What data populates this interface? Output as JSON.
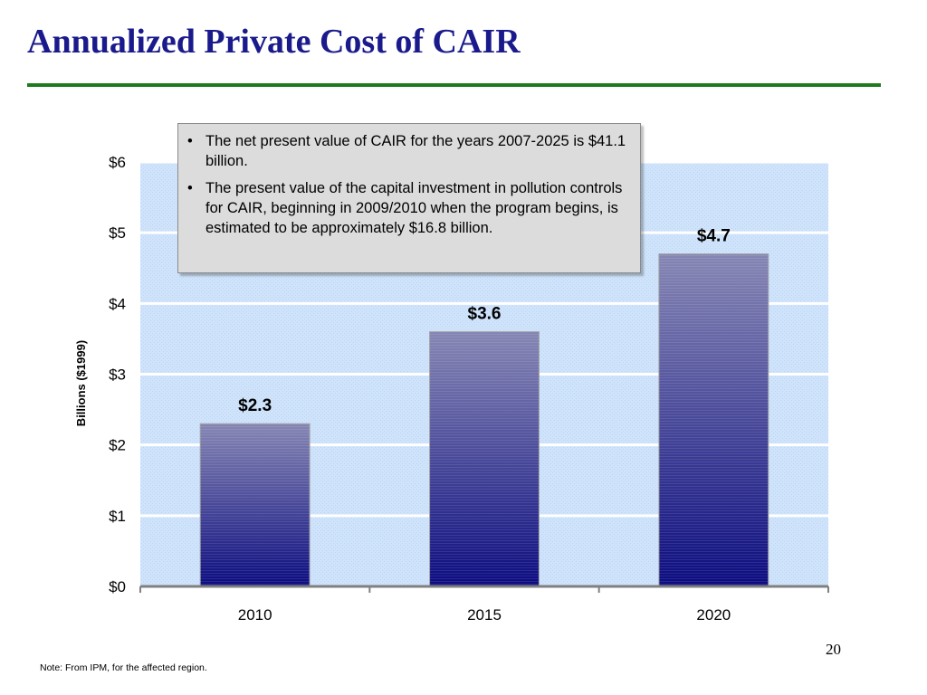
{
  "slide": {
    "title": "Annualized Private Cost of CAIR",
    "page_number": "20",
    "footnote": "Note: From IPM, for the affected region."
  },
  "callout": {
    "bullets": [
      "The net present value of CAIR for the years 2007-2025 is $41.1 billion.",
      "The present value of the capital investment in pollution controls for CAIR, beginning in 2009/2010 when the program begins, is estimated to be approximately $16.8 billion."
    ],
    "bullet_glyph": "•"
  },
  "colors": {
    "title": "#1a1a8c",
    "rule": "#1e7a1e",
    "plot_background": "#cfe3fb",
    "bar_top": "#8686b4",
    "bar_bottom": "#0c0c80"
  },
  "chart_data": {
    "type": "bar",
    "categories": [
      "2010",
      "2015",
      "2020"
    ],
    "values": [
      2.3,
      3.6,
      4.7
    ],
    "data_labels": [
      "$2.3",
      "$3.6",
      "$4.7"
    ],
    "title": "",
    "xlabel": "",
    "ylabel": "Billions ($1999)",
    "ylim": [
      0,
      6
    ],
    "yticks": [
      0,
      1,
      2,
      3,
      4,
      5,
      6
    ],
    "ytick_labels": [
      "$0",
      "$1",
      "$2",
      "$3",
      "$4",
      "$5",
      "$6"
    ],
    "grid": true,
    "legend": "none"
  }
}
